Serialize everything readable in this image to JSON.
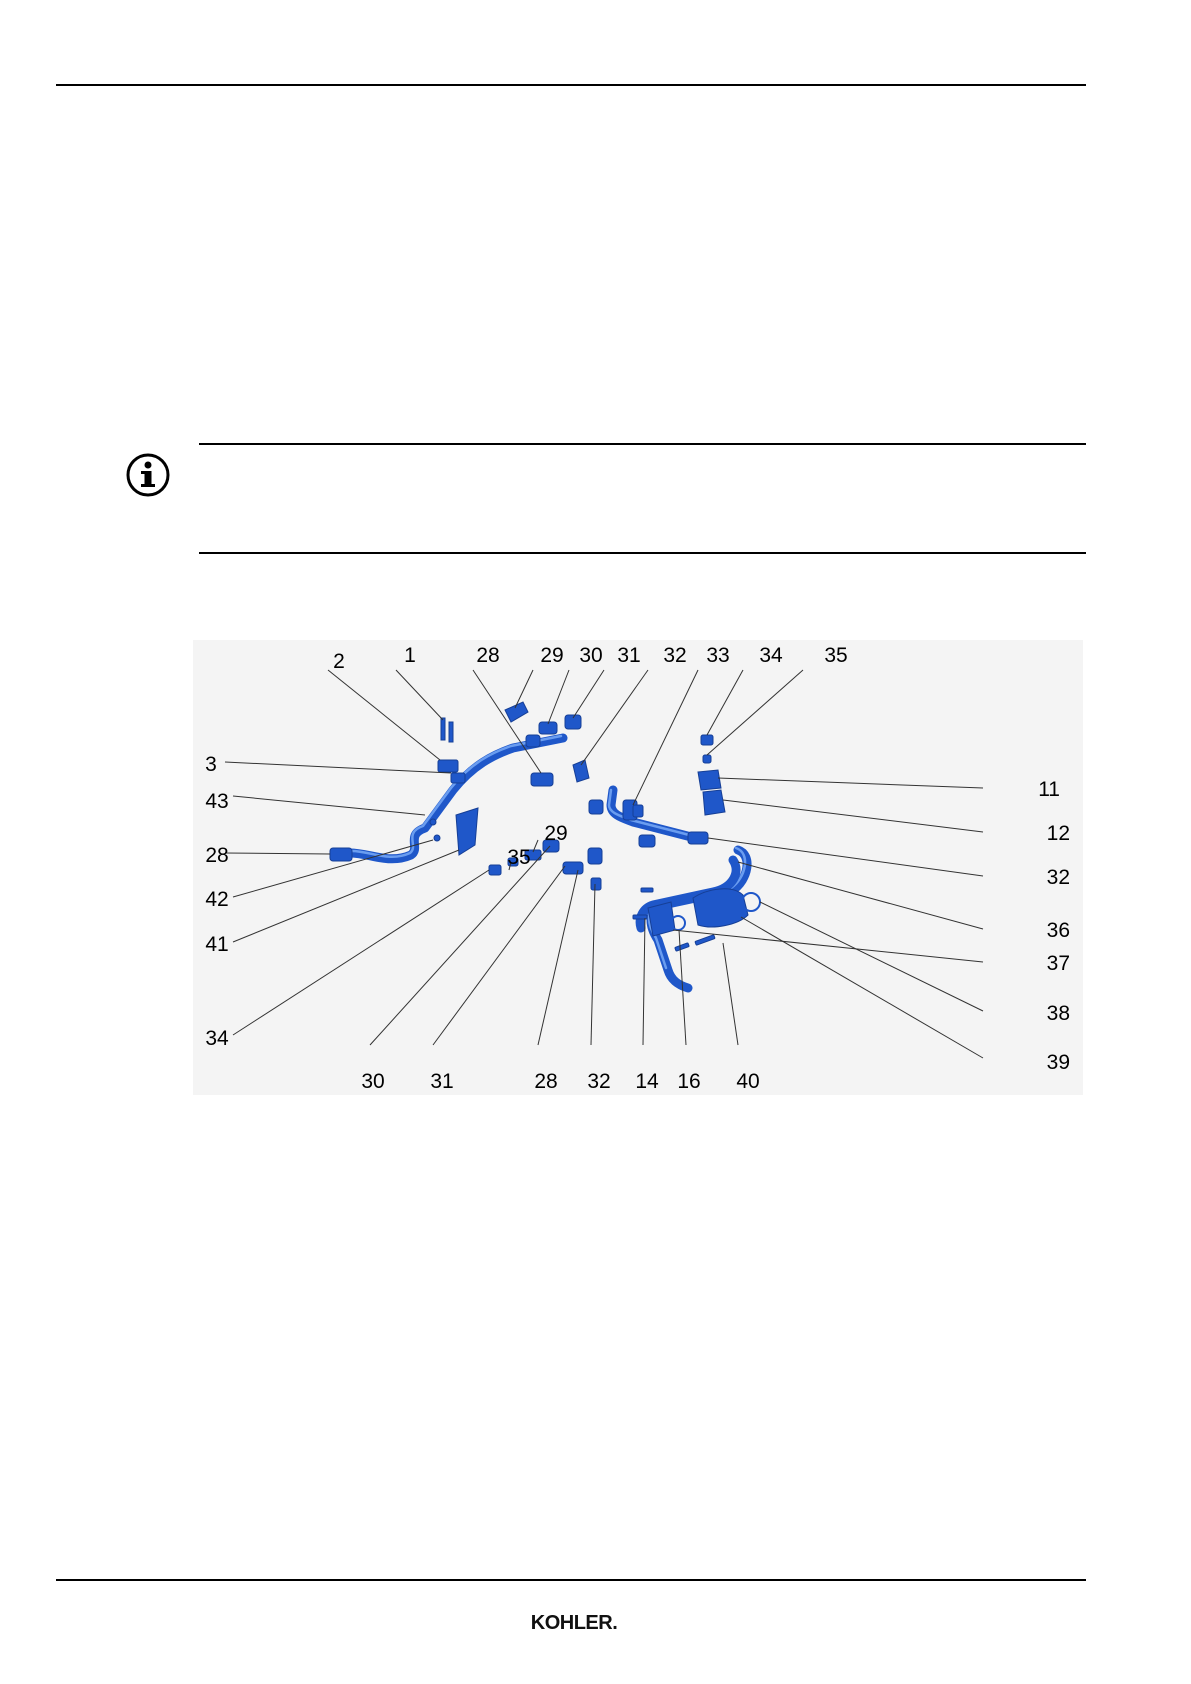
{
  "page": {
    "brand": "KOHLER."
  },
  "note": {
    "icon": "info-icon"
  },
  "figure": {
    "description_icon": "exploded-view-diagram",
    "part_color": "#1f57c9",
    "callouts": {
      "top": [
        "2",
        "1",
        "28",
        "29",
        "30",
        "31",
        "32",
        "33",
        "34",
        "35"
      ],
      "left": [
        "3",
        "43",
        "28",
        "42",
        "41",
        "34"
      ],
      "right": [
        "11",
        "12",
        "32",
        "36",
        "37",
        "38",
        "39"
      ],
      "bottom": [
        "30",
        "31",
        "28",
        "32",
        "14",
        "16",
        "40"
      ],
      "inner": [
        "29",
        "35"
      ]
    }
  }
}
